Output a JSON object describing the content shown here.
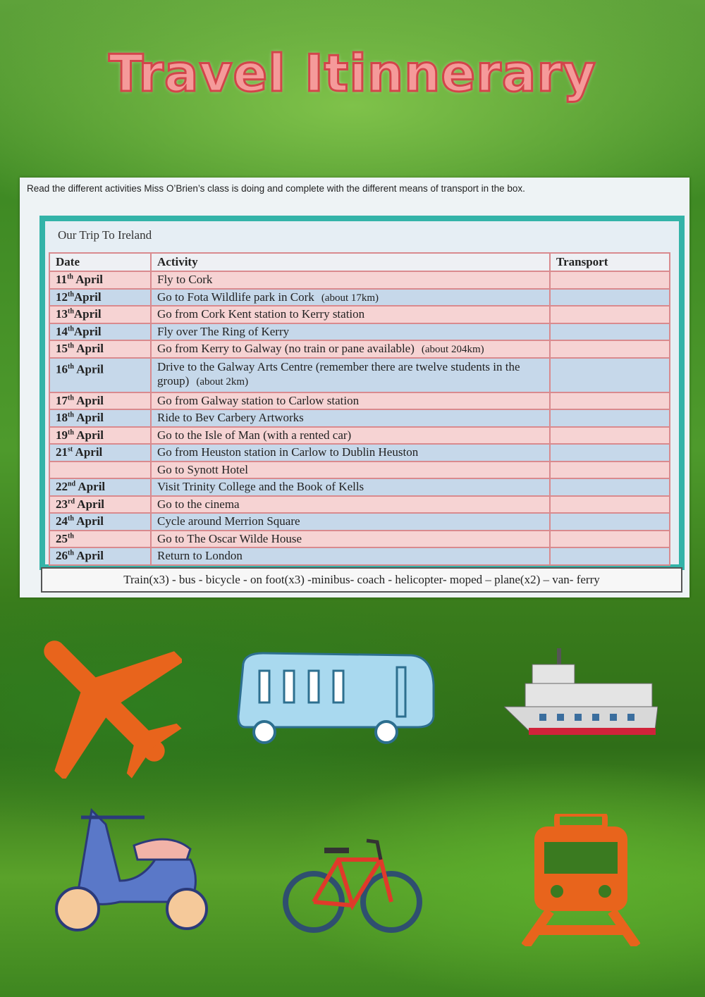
{
  "title": "Travel Itinnerary",
  "worksheet": {
    "instruction": "Read the different activities Miss O’Brien’s class is doing and complete with the different means of transport in the box.",
    "heading": "Our Trip To Ireland",
    "columns": [
      "Date",
      "Activity",
      "Transport"
    ],
    "rows": [
      {
        "day": "11",
        "suffix": "th",
        "month": " April",
        "activity": "Fly to Cork",
        "note": "",
        "transport": ""
      },
      {
        "day": "12",
        "suffix": "th",
        "month": "April",
        "activity": "Go to Fota Wildlife park  in Cork",
        "note": "(about 17km)",
        "transport": ""
      },
      {
        "day": "13",
        "suffix": "th",
        "month": "April",
        "activity": "Go from Cork Kent station to Kerry station",
        "note": "",
        "transport": ""
      },
      {
        "day": "14",
        "suffix": "th",
        "month": "April",
        "activity": "Fly over The Ring of Kerry",
        "note": "",
        "transport": ""
      },
      {
        "day": "15",
        "suffix": "th",
        "month": " April",
        "activity": "Go from Kerry to Galway (no train or pane available)",
        "note": "(about 204km)",
        "transport": ""
      },
      {
        "day": "16",
        "suffix": "th",
        "month": " April",
        "activity": "Drive to the Galway Arts Centre (remember there are twelve students in the group)",
        "note": "(about 2km)",
        "transport": ""
      },
      {
        "day": "17",
        "suffix": "th",
        "month": " April",
        "activity": "Go from Galway station to Carlow station",
        "note": "",
        "transport": ""
      },
      {
        "day": "18",
        "suffix": "th",
        "month": " April",
        "activity": "Ride to Bev Carbery Artworks",
        "note": "",
        "transport": ""
      },
      {
        "day": "19",
        "suffix": "th",
        "month": " April",
        "activity": "Go to the Isle of Man (with a rented car)",
        "note": "",
        "transport": ""
      },
      {
        "day": "21",
        "suffix": "st",
        "month": " April",
        "activity": "Go from Heuston station in Carlow to Dublin Heuston",
        "note": "",
        "transport": ""
      },
      {
        "day": "",
        "suffix": "",
        "month": "",
        "activity": "Go to Synott Hotel",
        "note": "",
        "transport": ""
      },
      {
        "day": "22",
        "suffix": "nd",
        "month": " April",
        "activity": "Visit Trinity College and the Book of Kells",
        "note": "",
        "transport": ""
      },
      {
        "day": "23",
        "suffix": "rd",
        "month": " April",
        "activity": "Go to the cinema",
        "note": "",
        "transport": ""
      },
      {
        "day": "24",
        "suffix": "th",
        "month": " April",
        "activity": "Cycle around Merrion Square",
        "note": "",
        "transport": ""
      },
      {
        "day": "25",
        "suffix": "th",
        "month": "",
        "activity": "Go to The Oscar Wilde House",
        "note": "",
        "transport": ""
      },
      {
        "day": "26",
        "suffix": "th",
        "month": " April",
        "activity": "Return to London",
        "note": "",
        "transport": ""
      }
    ],
    "word_bank": "Train(x3) - bus - bicycle  - on foot(x3)  -minibus-  coach - helicopter- moped – plane(x2) – van- ferry"
  },
  "icons": [
    "plane-icon",
    "bus-icon",
    "ferry-icon",
    "moped-icon",
    "bicycle-icon",
    "train-icon"
  ],
  "colors": {
    "title_fill": "#f59a9a",
    "title_stroke": "#d2454a",
    "frame": "#33b3a8",
    "row_pink": "#f6d3d3",
    "row_blue": "#c6d8ea",
    "plane": "#e8641c",
    "train": "#e8641c"
  }
}
